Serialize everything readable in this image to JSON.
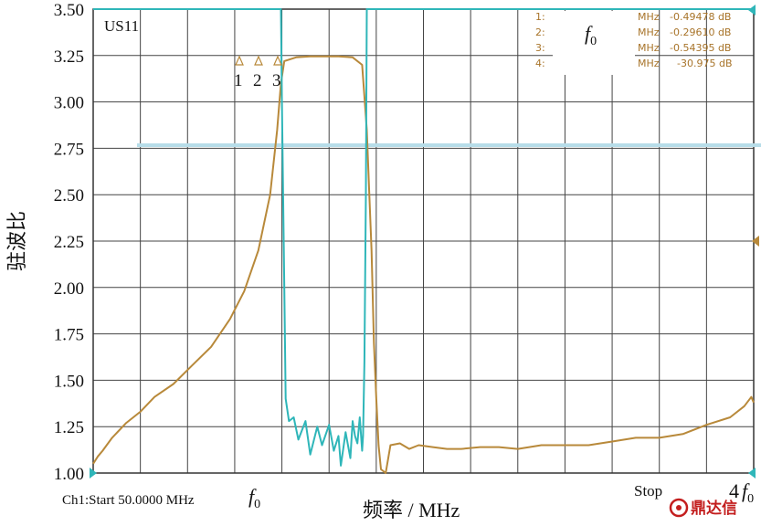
{
  "chart_data": {
    "type": "line",
    "title": "",
    "xlabel": "频率 / MHz",
    "ylabel": "驻波比",
    "ylim": [
      1.0,
      3.5
    ],
    "xlim": [
      0,
      14
    ],
    "grid": true,
    "y_ticks": [
      "1.00",
      "1.25",
      "1.50",
      "1.75",
      "2.00",
      "2.25",
      "2.50",
      "2.75",
      "3.00",
      "3.25",
      "3.50"
    ],
    "trace_label": "US11",
    "marker_numbers": [
      "1",
      "2",
      "3"
    ],
    "start_label": "Ch1:Start  50.0000 MHz",
    "f0_label": "f",
    "f0_sub": "0",
    "stop_label": "Stop",
    "stop_mult": "4",
    "marker_table": {
      "f0_label": "f",
      "f0_sub": "0",
      "rows": [
        {
          "id": "1:",
          "unit": "MHz",
          "value": "-0.49478 dB"
        },
        {
          "id": "2:",
          "unit": "MHz",
          "value": "-0.29610 dB"
        },
        {
          "id": "3:",
          "unit": "MHz",
          "value": "-0.54395 dB"
        },
        {
          "id": "4:",
          "unit": "MHz",
          "value": "-30.975 dB"
        }
      ]
    },
    "series": [
      {
        "color": "#b8893a",
        "x": [
          0.0,
          0.1,
          0.2,
          0.4,
          0.7,
          1.0,
          1.3,
          1.7,
          2.1,
          2.5,
          2.9,
          3.2,
          3.5,
          3.75,
          3.9,
          3.98,
          4.05,
          4.3,
          4.6,
          4.9,
          5.2,
          5.5,
          5.7,
          5.8,
          5.85,
          5.9,
          5.95,
          6.0,
          6.05,
          6.1,
          6.2,
          6.3,
          6.5,
          6.7,
          6.9,
          7.2,
          7.5,
          7.8,
          8.2,
          8.6,
          9.0,
          9.5,
          10.0,
          10.5,
          11.0,
          11.5,
          12.0,
          12.5,
          13.0,
          13.5,
          13.8,
          13.95,
          14.0
        ],
        "y": [
          1.05,
          1.09,
          1.12,
          1.19,
          1.27,
          1.33,
          1.41,
          1.48,
          1.58,
          1.68,
          1.83,
          1.98,
          2.2,
          2.5,
          2.85,
          3.1,
          3.22,
          3.24,
          3.245,
          3.245,
          3.245,
          3.24,
          3.2,
          2.85,
          2.52,
          2.2,
          1.7,
          1.4,
          1.15,
          1.02,
          1.0,
          1.15,
          1.16,
          1.13,
          1.15,
          1.14,
          1.13,
          1.13,
          1.14,
          1.14,
          1.13,
          1.15,
          1.15,
          1.15,
          1.17,
          1.19,
          1.19,
          1.21,
          1.26,
          1.3,
          1.36,
          1.41,
          1.38
        ]
      },
      {
        "color": "#2fb6b9",
        "x": [
          0.0,
          3.95,
          3.98,
          4.0,
          4.05,
          4.08,
          4.15,
          4.25,
          4.35,
          4.5,
          4.6,
          4.75,
          4.85,
          5.0,
          5.1,
          5.2,
          5.25,
          5.35,
          5.45,
          5.5,
          5.55,
          5.6,
          5.65,
          5.7,
          5.72,
          5.75,
          5.78,
          5.8,
          14.0
        ],
        "y": [
          3.5,
          3.5,
          3.5,
          3.0,
          2.0,
          1.4,
          1.28,
          1.3,
          1.18,
          1.28,
          1.1,
          1.25,
          1.15,
          1.26,
          1.12,
          1.2,
          1.04,
          1.22,
          1.08,
          1.28,
          1.2,
          1.16,
          1.3,
          1.12,
          1.2,
          1.6,
          2.5,
          3.5,
          3.5
        ]
      }
    ]
  }
}
